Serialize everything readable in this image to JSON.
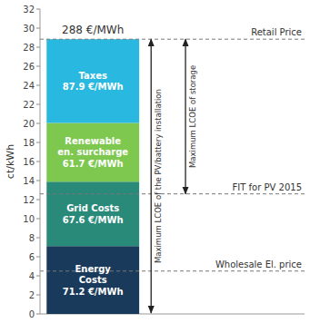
{
  "chart_data": {
    "type": "bar",
    "stacked": true,
    "title": "288 €/MWh",
    "y_label": "ct/kWh",
    "categories": [
      null
    ],
    "series": [
      {
        "name": "Energy\nCosts\n71.2 €/MWh",
        "color": "#1a3a5c",
        "values": [
          7.12
        ]
      },
      {
        "name": "Grid Costs\n67.6 €/MWh",
        "color": "#2a8a7a",
        "values": [
          6.76
        ]
      },
      {
        "name": "Renewable\nen. surcharge\n61.7 €/MWh",
        "color": "#7ec850",
        "values": [
          6.17
        ]
      },
      {
        "name": "Taxes\n87.9 €/MWh",
        "color": "#29b8e0",
        "values": [
          8.79
        ]
      }
    ],
    "ylim": [
      0,
      32
    ],
    "yticks": [
      0,
      2,
      4,
      6,
      8,
      10,
      12,
      14,
      16,
      18,
      20,
      22,
      24,
      26,
      28,
      30,
      32
    ],
    "grid": false,
    "annotations": [
      {
        "kind": "line",
        "y": 4.5,
        "text": "Wholesale El. price"
      },
      {
        "kind": "line",
        "y": 12.6,
        "text": "FIT for PV 2015"
      },
      {
        "kind": "line",
        "y": 28.84,
        "text": "Retail Price"
      },
      {
        "kind": "arrow",
        "y_from": 0.1,
        "y_to": 28.84,
        "text": "Maximum LCOE of the PV/battery installation"
      },
      {
        "kind": "arrow",
        "y_from": 12.6,
        "y_to": 28.84,
        "text": "Maximum LCOE of storage"
      }
    ]
  }
}
